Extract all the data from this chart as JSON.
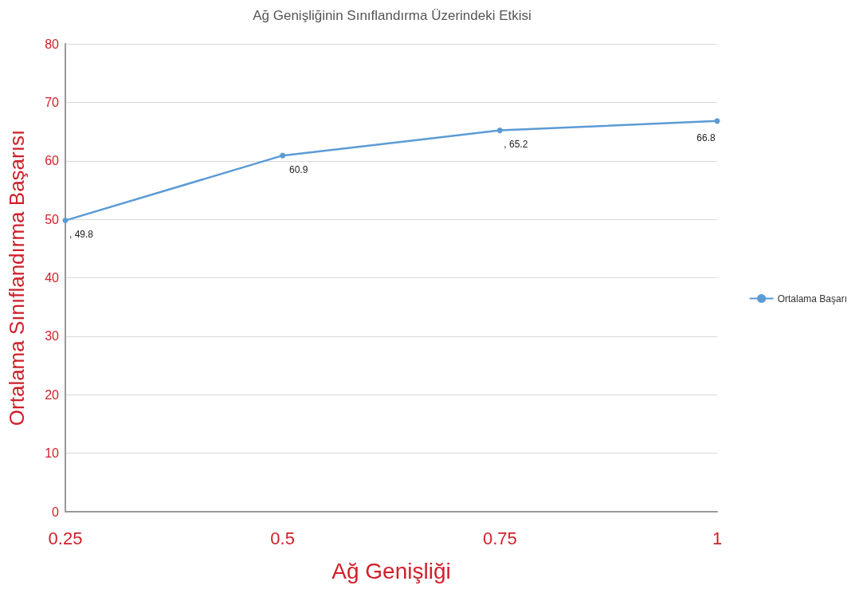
{
  "chart_data": {
    "type": "line",
    "title": "Ağ Genişliğinin Sınıflandırma Üzerindeki Etkisi",
    "xlabel": "Ağ Genişliği",
    "ylabel": "Ortalama Sınıflandırma Başarısı",
    "categories": [
      "0.25",
      "0.5",
      "0.75",
      "1"
    ],
    "series": [
      {
        "name": "Ortalama Başarı",
        "color": "#5b9bd5",
        "values": [
          49.8,
          60.9,
          65.2,
          66.8
        ],
        "value_labels": [
          ", 49.8",
          "60.9",
          ", 65.2",
          "66.8"
        ]
      }
    ],
    "ylim": [
      0,
      80
    ],
    "yticks": [
      0,
      10,
      20,
      30,
      40,
      50,
      60,
      70,
      80
    ],
    "grid": "y",
    "legend": "right",
    "marker": "circle",
    "line_style": "solid"
  }
}
